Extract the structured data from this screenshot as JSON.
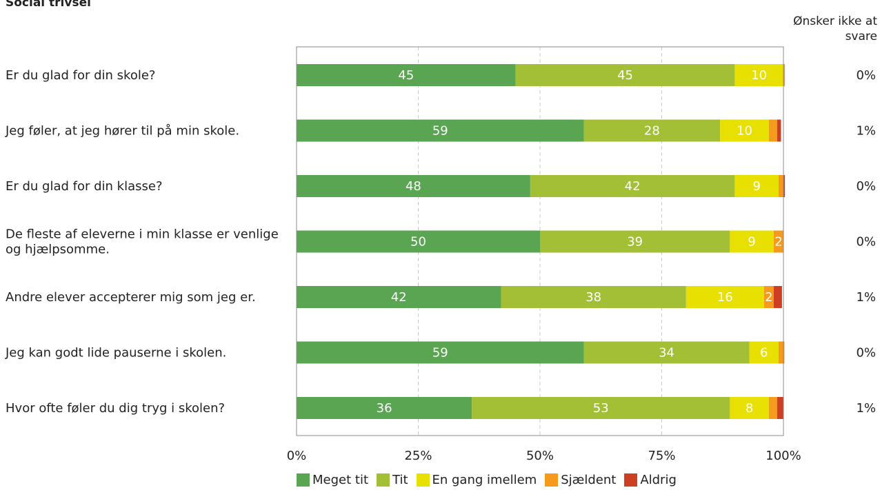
{
  "title": "Social trivsel",
  "optout_header": "Ønsker ikke at svare",
  "chart_data": {
    "type": "bar",
    "orientation": "horizontal",
    "stacked": true,
    "categories": [
      "Er du glad for din skole?",
      "Jeg føler, at jeg hører til på min skole.",
      "Er du glad for din klasse?",
      "De fleste af eleverne i min klasse er venlige og hjælpsomme.",
      "Andre elever accepterer mig som jeg er.",
      "Jeg kan godt lide pauserne i skolen.",
      "Hvor ofte føler du dig tryg i skolen?"
    ],
    "series": [
      {
        "name": "Meget tit",
        "color": "#5aa552",
        "values": [
          45,
          59,
          48,
          50,
          42,
          59,
          36
        ]
      },
      {
        "name": "Tit",
        "color": "#a3bf36",
        "values": [
          45,
          28,
          42,
          39,
          38,
          34,
          53
        ]
      },
      {
        "name": "En gang imellem",
        "color": "#e8e000",
        "values": [
          10,
          10,
          9,
          9,
          16,
          6,
          8
        ]
      },
      {
        "name": "Sjældent",
        "color": "#f59a1c",
        "values": [
          0.3,
          1.7,
          1,
          2,
          2,
          1.2,
          1.7
        ]
      },
      {
        "name": "Aldrig",
        "color": "#cd3f23",
        "values": [
          0,
          0.8,
          0.3,
          0,
          1.7,
          0,
          1.3
        ]
      }
    ],
    "data_labels": [
      [
        "45",
        "45",
        "10",
        "",
        ""
      ],
      [
        "59",
        "28",
        "10",
        "",
        ""
      ],
      [
        "48",
        "42",
        "9",
        "",
        ""
      ],
      [
        "50",
        "39",
        "9",
        "2",
        ""
      ],
      [
        "42",
        "38",
        "16",
        "2",
        ""
      ],
      [
        "59",
        "34",
        "6",
        "",
        ""
      ],
      [
        "36",
        "53",
        "8",
        "",
        ""
      ]
    ],
    "optout_values": [
      "0%",
      "1%",
      "0%",
      "0%",
      "1%",
      "0%",
      "1%"
    ],
    "x_ticks": [
      "0%",
      "25%",
      "50%",
      "75%",
      "100%"
    ],
    "xlim": [
      0,
      100
    ],
    "grid": "vertical dashed",
    "legend_position": "bottom"
  }
}
